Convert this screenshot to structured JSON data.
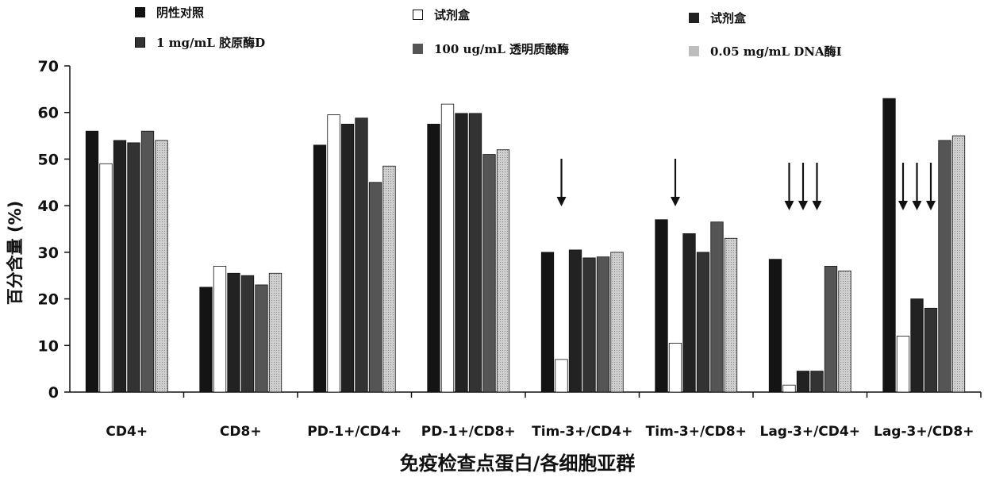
{
  "chart_data": {
    "type": "bar",
    "title": "",
    "xlabel": "免疫检查点蛋白/各细胞亚群",
    "ylabel": "百分含量 (%)",
    "ylim": [
      0,
      70
    ],
    "yticks": [
      0,
      10,
      20,
      30,
      40,
      50,
      60,
      70
    ],
    "grid": false,
    "legend_position": "top",
    "categories": [
      "CD4+",
      "CD8+",
      "PD-1+/CD4+",
      "PD-1+/CD8+",
      "Tim-3+/CD4+",
      "Tim-3+/CD8+",
      "Lag-3+/CD4+",
      "Lag-3+/CD8+"
    ],
    "series": [
      {
        "name": "阴性对照",
        "color": "#141414",
        "values": [
          56,
          22.5,
          53,
          57.5,
          30,
          37,
          28.5,
          63
        ]
      },
      {
        "name": "试剂盒",
        "color": "#ffffff",
        "values": [
          49,
          27,
          59.5,
          61.8,
          7,
          10.5,
          1.5,
          12
        ]
      },
      {
        "name": "试剂盒",
        "color": "#222222",
        "values": [
          54,
          25.5,
          57.5,
          59.8,
          30.5,
          34,
          4.5,
          20
        ]
      },
      {
        "name": "1 mg/mL 胶原酶D",
        "color": "#333333",
        "values": [
          53.5,
          25,
          58.8,
          59.8,
          28.8,
          30,
          4.5,
          18
        ]
      },
      {
        "name": "100 ug/mL 透明质酸酶",
        "color": "#555555",
        "values": [
          56,
          23,
          45,
          51,
          29,
          36.5,
          27,
          54
        ]
      },
      {
        "name": "0.05 mg/mL DNA酶I",
        "color": "#b8b8b8",
        "values": [
          54,
          25.5,
          48.5,
          52,
          30,
          33,
          26,
          55
        ]
      }
    ],
    "annotations": [
      {
        "category": "Tim-3+/CD4+",
        "arrows": 1
      },
      {
        "category": "Tim-3+/CD8+",
        "arrows": 1
      },
      {
        "category": "Lag-3+/CD4+",
        "arrows": 3
      },
      {
        "category": "Lag-3+/CD8+",
        "arrows": 3
      }
    ]
  }
}
